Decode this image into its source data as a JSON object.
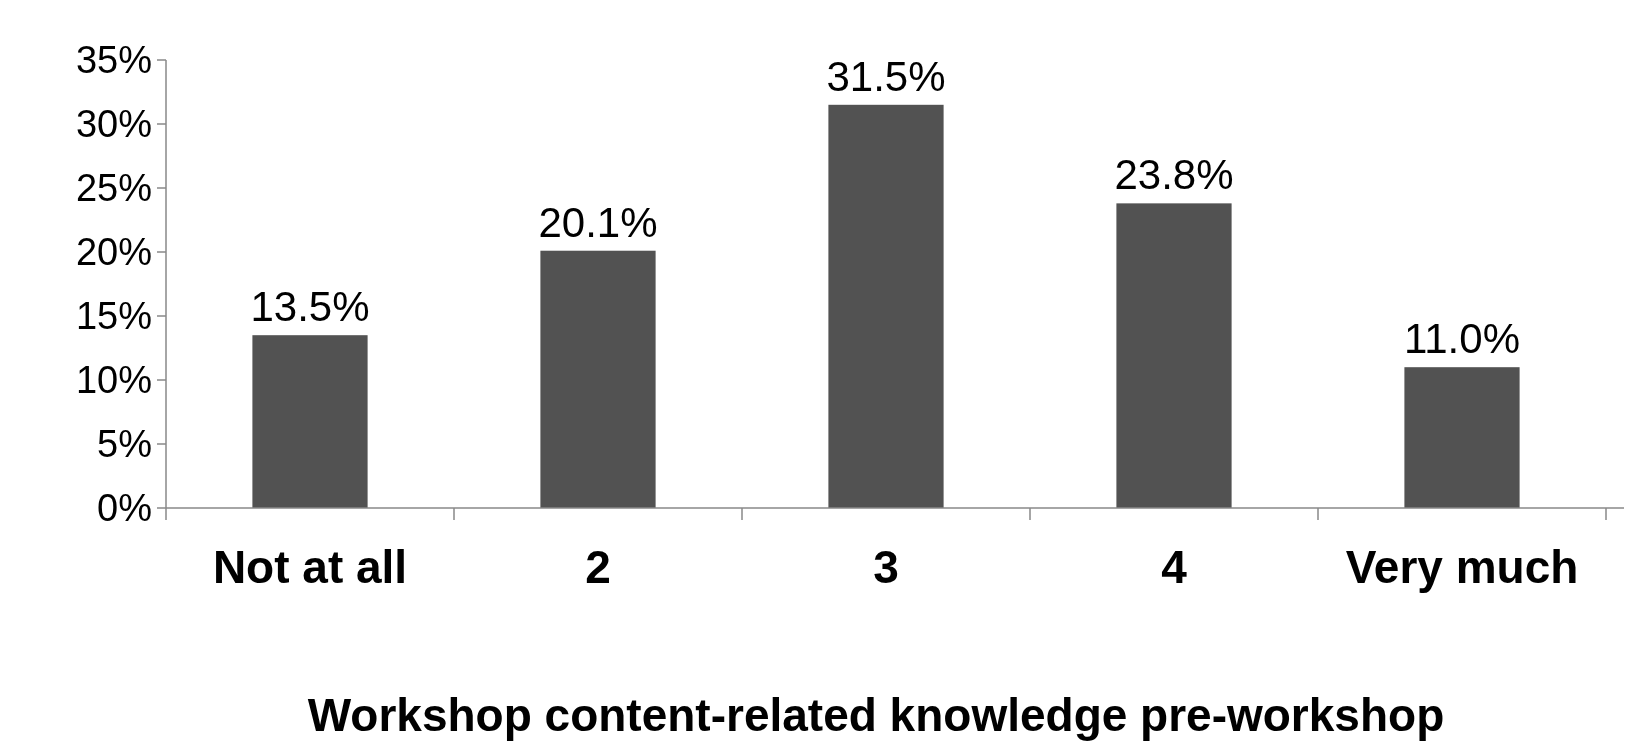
{
  "chart_data": {
    "type": "bar",
    "xlabel": "Workshop content-related knowledge pre-workshop",
    "categories": [
      "Not at all",
      "2",
      "3",
      "4",
      "Very much"
    ],
    "values": [
      13.5,
      20.1,
      31.5,
      23.8,
      11.0
    ],
    "value_labels": [
      "13.5%",
      "20.1%",
      "31.5%",
      "23.8%",
      "11.0%"
    ],
    "color": "#525252",
    "ylim": [
      0,
      35
    ],
    "yticks": [
      {
        "value": 0,
        "label": "0%"
      },
      {
        "value": 5,
        "label": "5%"
      },
      {
        "value": 10,
        "label": "10%"
      },
      {
        "value": 15,
        "label": "15%"
      },
      {
        "value": 20,
        "label": "20%"
      },
      {
        "value": 25,
        "label": "25%"
      },
      {
        "value": 30,
        "label": "30%"
      },
      {
        "value": 35,
        "label": "35%"
      }
    ],
    "grid": false
  }
}
